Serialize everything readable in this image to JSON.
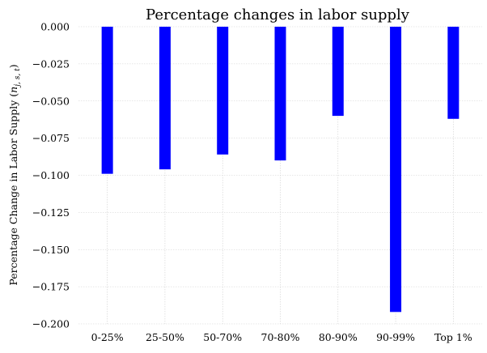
{
  "chart_data": {
    "type": "bar",
    "title": "Percentage changes in labor supply",
    "xlabel": "",
    "ylabel_main": "Percentage Change in Labor Supply (",
    "ylabel_math": "n",
    "ylabel_sub": "j, s, t",
    "ylabel_close": ")",
    "categories": [
      "0-25%",
      "25-50%",
      "50-70%",
      "70-80%",
      "80-90%",
      "90-99%",
      "Top 1%"
    ],
    "values": [
      -0.099,
      -0.096,
      -0.086,
      -0.09,
      -0.06,
      -0.192,
      -0.062
    ],
    "ylim": [
      -0.2,
      0.0
    ],
    "yticks": [
      0.0,
      -0.025,
      -0.05,
      -0.075,
      -0.1,
      -0.125,
      -0.15,
      -0.175,
      -0.2
    ],
    "ytick_labels": [
      "0.000",
      "−0.025",
      "−0.050",
      "−0.075",
      "−0.100",
      "−0.125",
      "−0.150",
      "−0.175",
      "−0.200"
    ],
    "grid": true,
    "bar_color": "#0000ff"
  }
}
